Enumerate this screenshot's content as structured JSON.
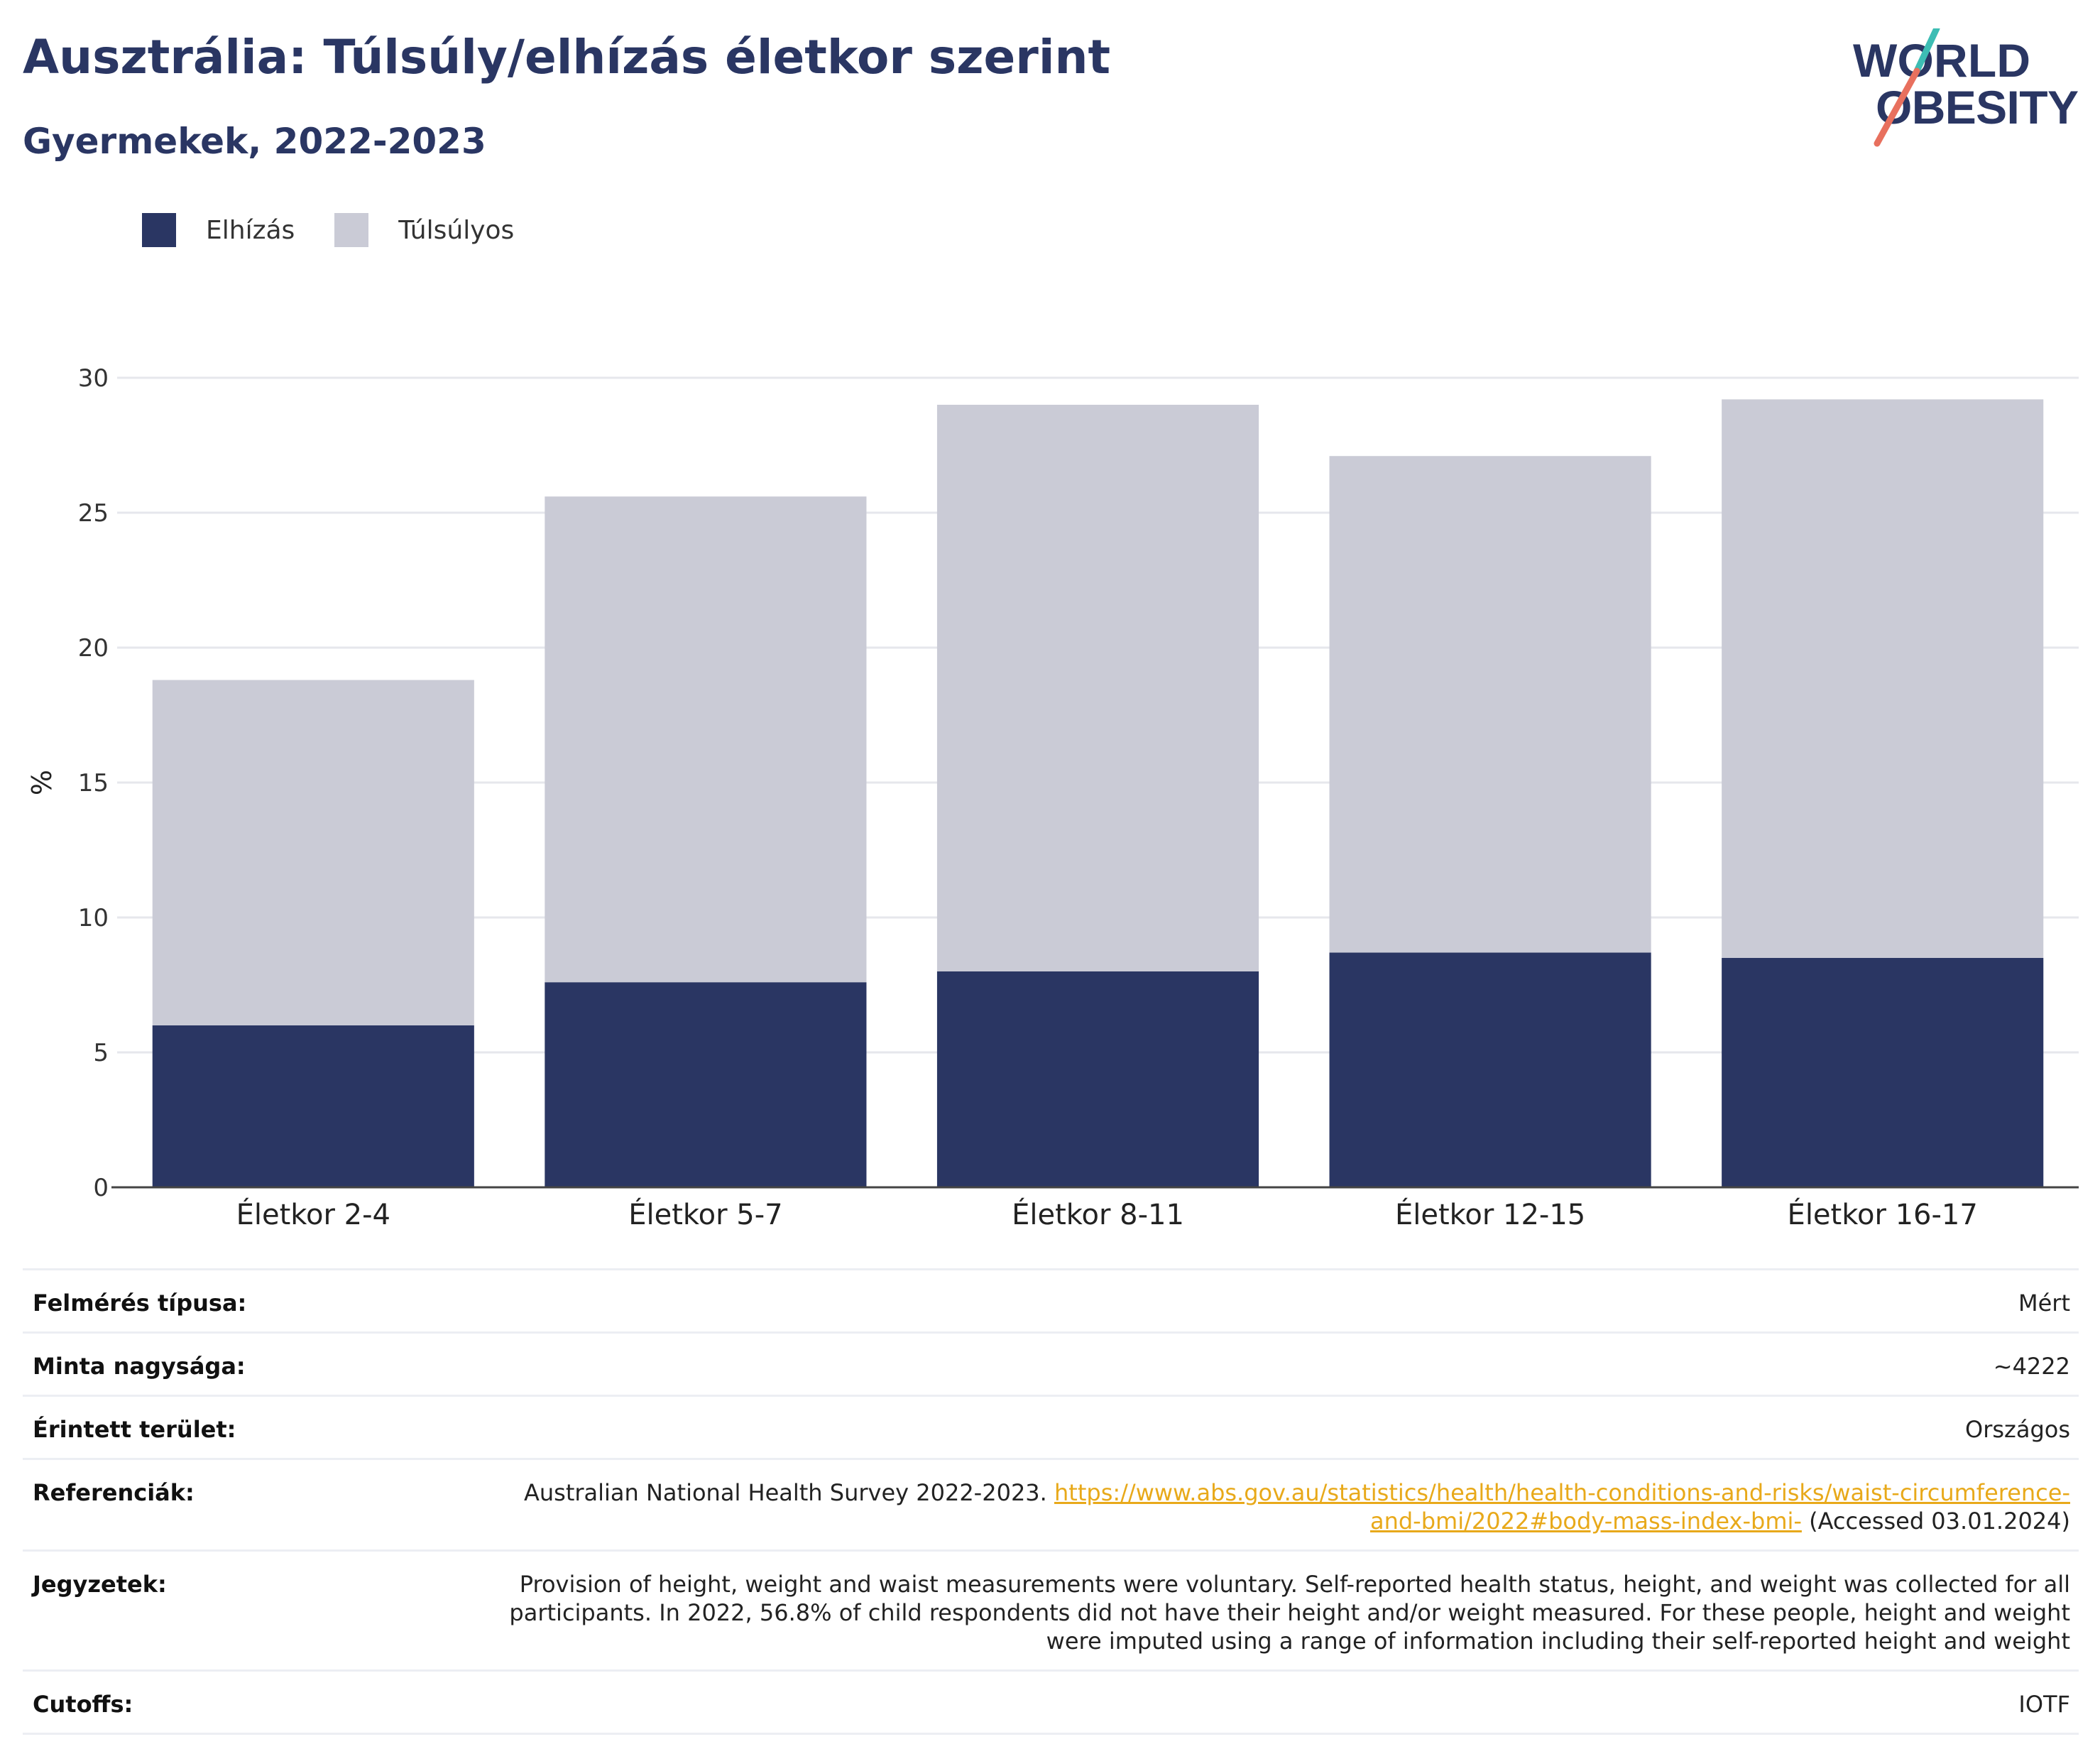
{
  "header": {
    "title": "Ausztrália: Túlsúly/elhízás életkor szerint",
    "subtitle": "Gyermekek, 2022-2023"
  },
  "logo": {
    "line1": "WORLD",
    "line2": "OBESITY",
    "colors": {
      "text": "#2a3663",
      "slash_teal": "#3dbdb4",
      "slash_coral": "#e8705e"
    }
  },
  "legend": {
    "items": [
      {
        "label": "Elhízás",
        "color": "#2a3663"
      },
      {
        "label": "Túlsúlyos",
        "color": "#cacbd6"
      }
    ]
  },
  "chart_data": {
    "type": "bar",
    "stacked": true,
    "categories": [
      "Életkor 2-4",
      "Életkor 5-7",
      "Életkor 8-11",
      "Életkor 12-15",
      "Életkor 16-17"
    ],
    "series": [
      {
        "name": "Elhízás",
        "color": "#2a3663",
        "values": [
          6.0,
          7.6,
          8.0,
          8.7,
          8.5
        ]
      },
      {
        "name": "Túlsúlyos",
        "color": "#cacbd6",
        "values": [
          12.8,
          18.0,
          21.0,
          18.4,
          20.7
        ]
      }
    ],
    "ylabel": "%",
    "ylim": [
      0,
      30
    ],
    "yticks": [
      0,
      5,
      10,
      15,
      20,
      25,
      30
    ],
    "grid": true,
    "legend_position": "top-left"
  },
  "info": {
    "rows": [
      {
        "label": "Felmérés típusa:",
        "value": "Mért"
      },
      {
        "label": "Minta nagysága:",
        "value": "~4222"
      },
      {
        "label": "Érintett terület:",
        "value": "Országos"
      },
      {
        "label": "Referenciák:",
        "value_prefix": "Australian National Health Survey 2022-2023. ",
        "link": "https://www.abs.gov.au/statistics/health/health-conditions-and-risks/waist-circumference-and-bmi/2022#body-mass-index-bmi-",
        "value_suffix": " (Accessed 03.01.2024)"
      },
      {
        "label": "Jegyzetek:",
        "value": "Provision of height, weight and waist measurements were voluntary. Self-reported health status, height, and weight was collected for all participants. In 2022, 56.8% of child respondents did not have their height and/or weight measured. For these people, height and weight were imputed using a range of information including their self-reported height and weight"
      },
      {
        "label": "Cutoffs:",
        "value": "IOTF"
      }
    ]
  }
}
